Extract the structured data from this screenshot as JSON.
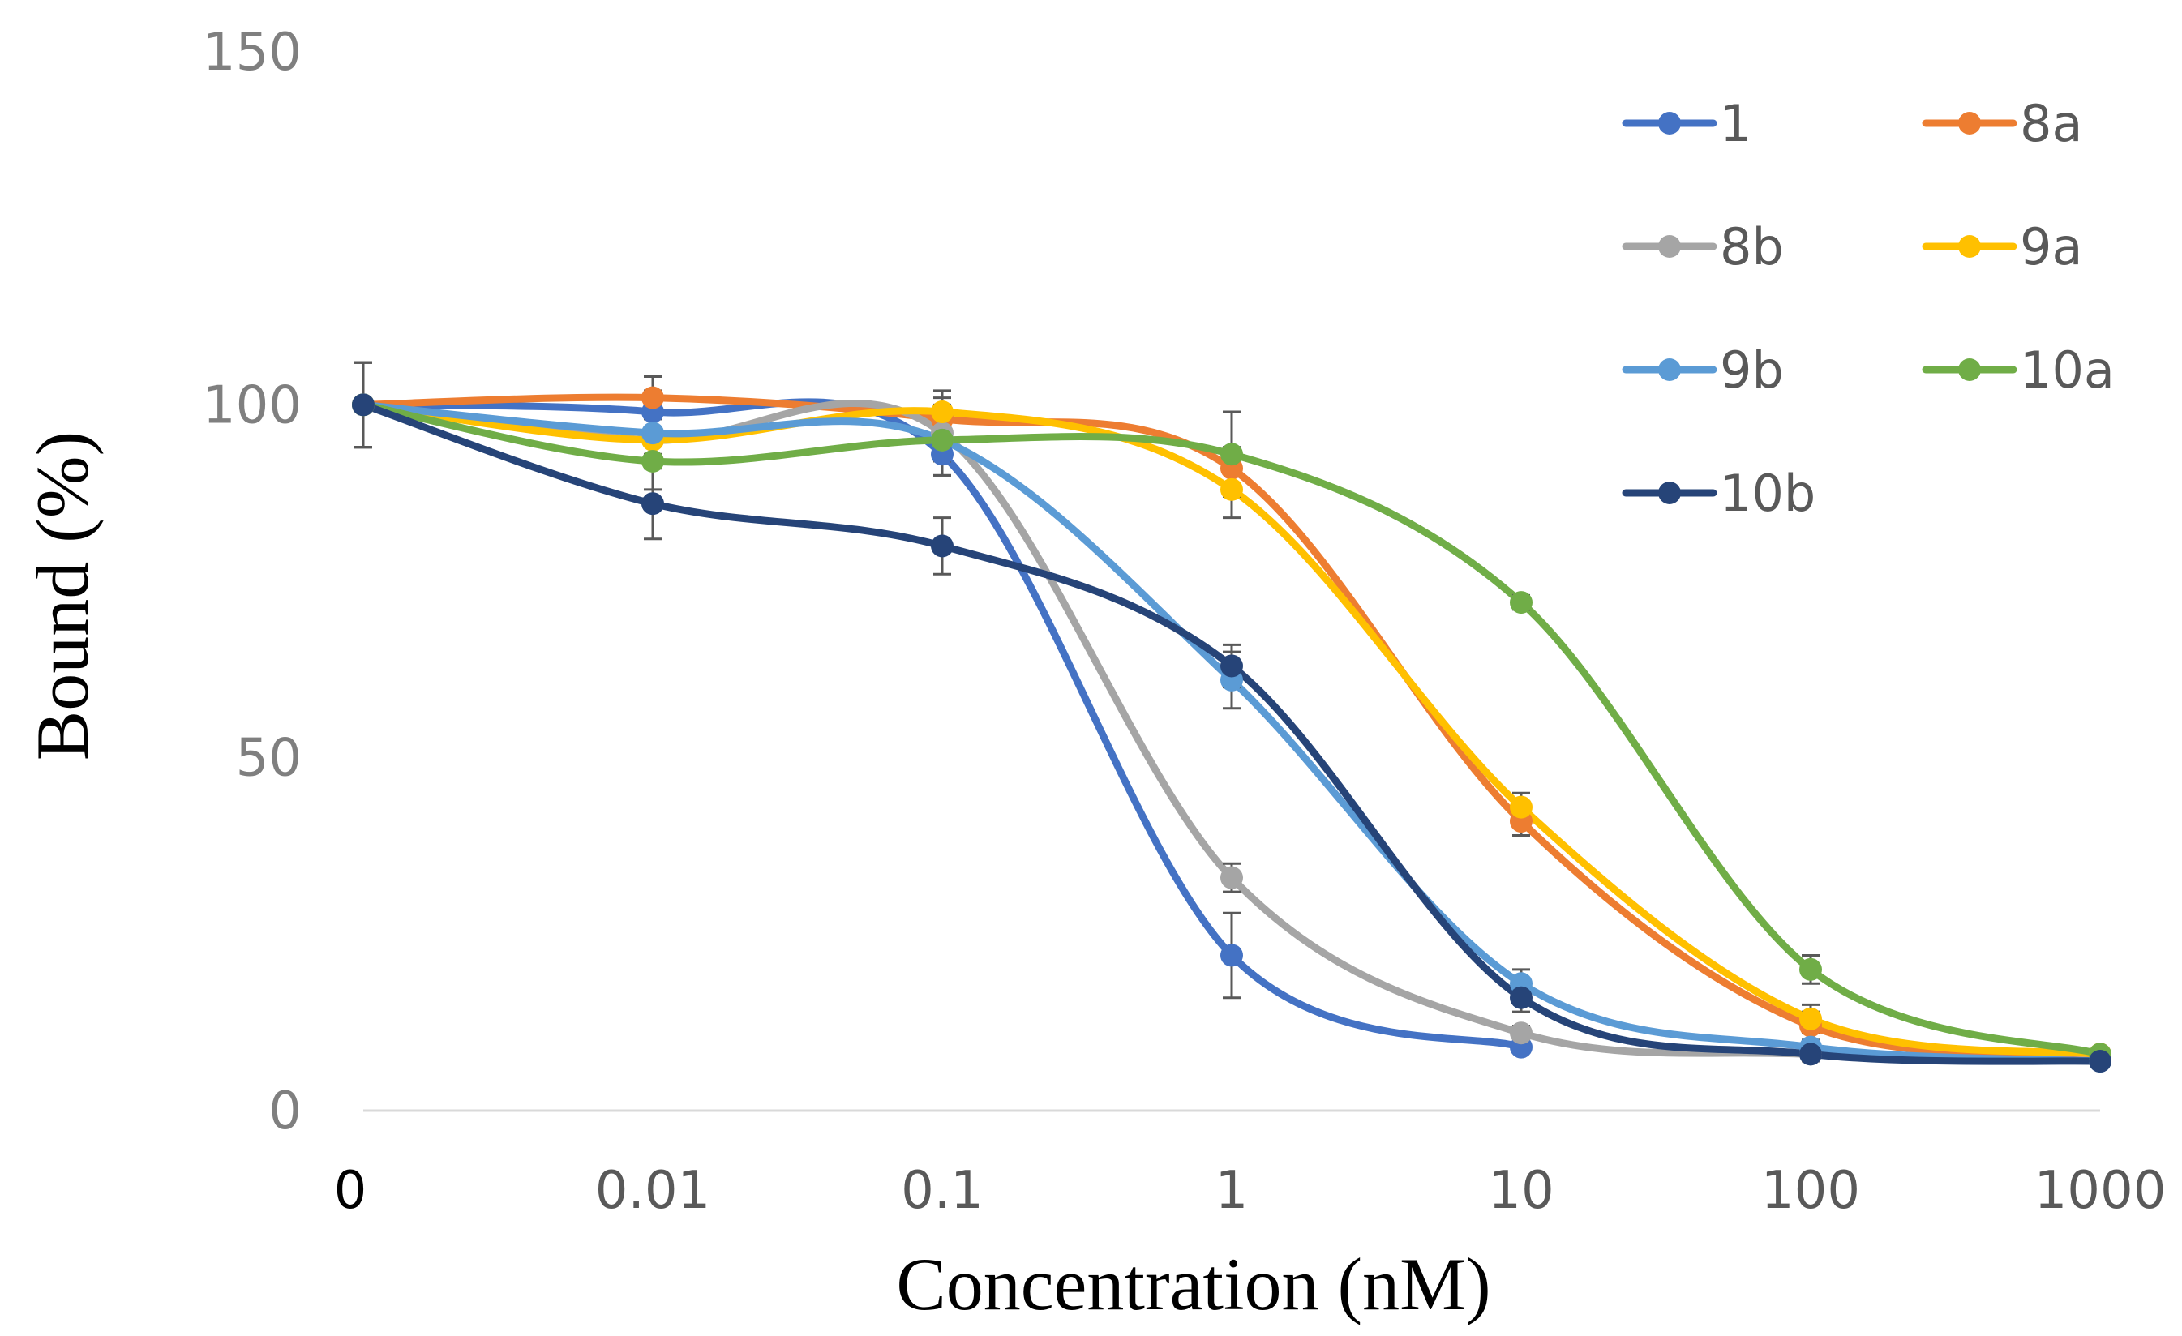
{
  "chart_data": {
    "type": "line",
    "title": "",
    "xlabel": "Concentration (nM)",
    "ylabel": "Bound (%)",
    "x_categories": [
      "0",
      "0.01",
      "0.1",
      "1",
      "10",
      "100",
      "1000"
    ],
    "y_ticks": [
      "0",
      "50",
      "100",
      "150"
    ],
    "ylim": [
      0,
      150
    ],
    "grid": false,
    "legend_position": "top-right",
    "series": [
      {
        "name": "1",
        "color": "#4472c4",
        "values": [
          100,
          99,
          93,
          22,
          9,
          null,
          null
        ],
        "errors": [
          6,
          3,
          3,
          6,
          0.5,
          null,
          null
        ]
      },
      {
        "name": "8a",
        "color": "#ed7d31",
        "values": [
          100,
          101,
          98,
          91,
          41,
          12,
          8
        ],
        "errors": [
          6,
          3,
          3,
          3,
          2,
          2,
          0.5
        ]
      },
      {
        "name": "8b",
        "color": "#a5a5a5",
        "values": [
          100,
          95,
          96,
          33,
          11,
          8,
          7
        ],
        "errors": [
          6,
          3,
          3,
          2,
          1,
          0.5,
          0.5
        ]
      },
      {
        "name": "9a",
        "color": "#ffc000",
        "values": [
          100,
          95,
          99,
          88,
          43,
          13,
          8
        ],
        "errors": [
          6,
          3,
          3,
          4,
          2,
          2,
          0.5
        ]
      },
      {
        "name": "9b",
        "color": "#5b9bd5",
        "values": [
          100,
          96,
          95,
          61,
          18,
          9,
          7
        ],
        "errors": [
          6,
          3,
          3,
          4,
          2,
          1,
          0.5
        ]
      },
      {
        "name": "10a",
        "color": "#70ad47",
        "values": [
          100,
          92,
          95,
          93,
          72,
          20,
          8
        ],
        "errors": [
          6,
          4,
          5,
          6,
          1,
          2,
          0.5
        ]
      },
      {
        "name": "10b",
        "color": "#264478",
        "values": [
          100,
          86,
          80,
          63,
          16,
          8,
          7
        ],
        "errors": [
          6,
          5,
          4,
          3,
          2,
          1,
          0.5
        ]
      }
    ]
  }
}
